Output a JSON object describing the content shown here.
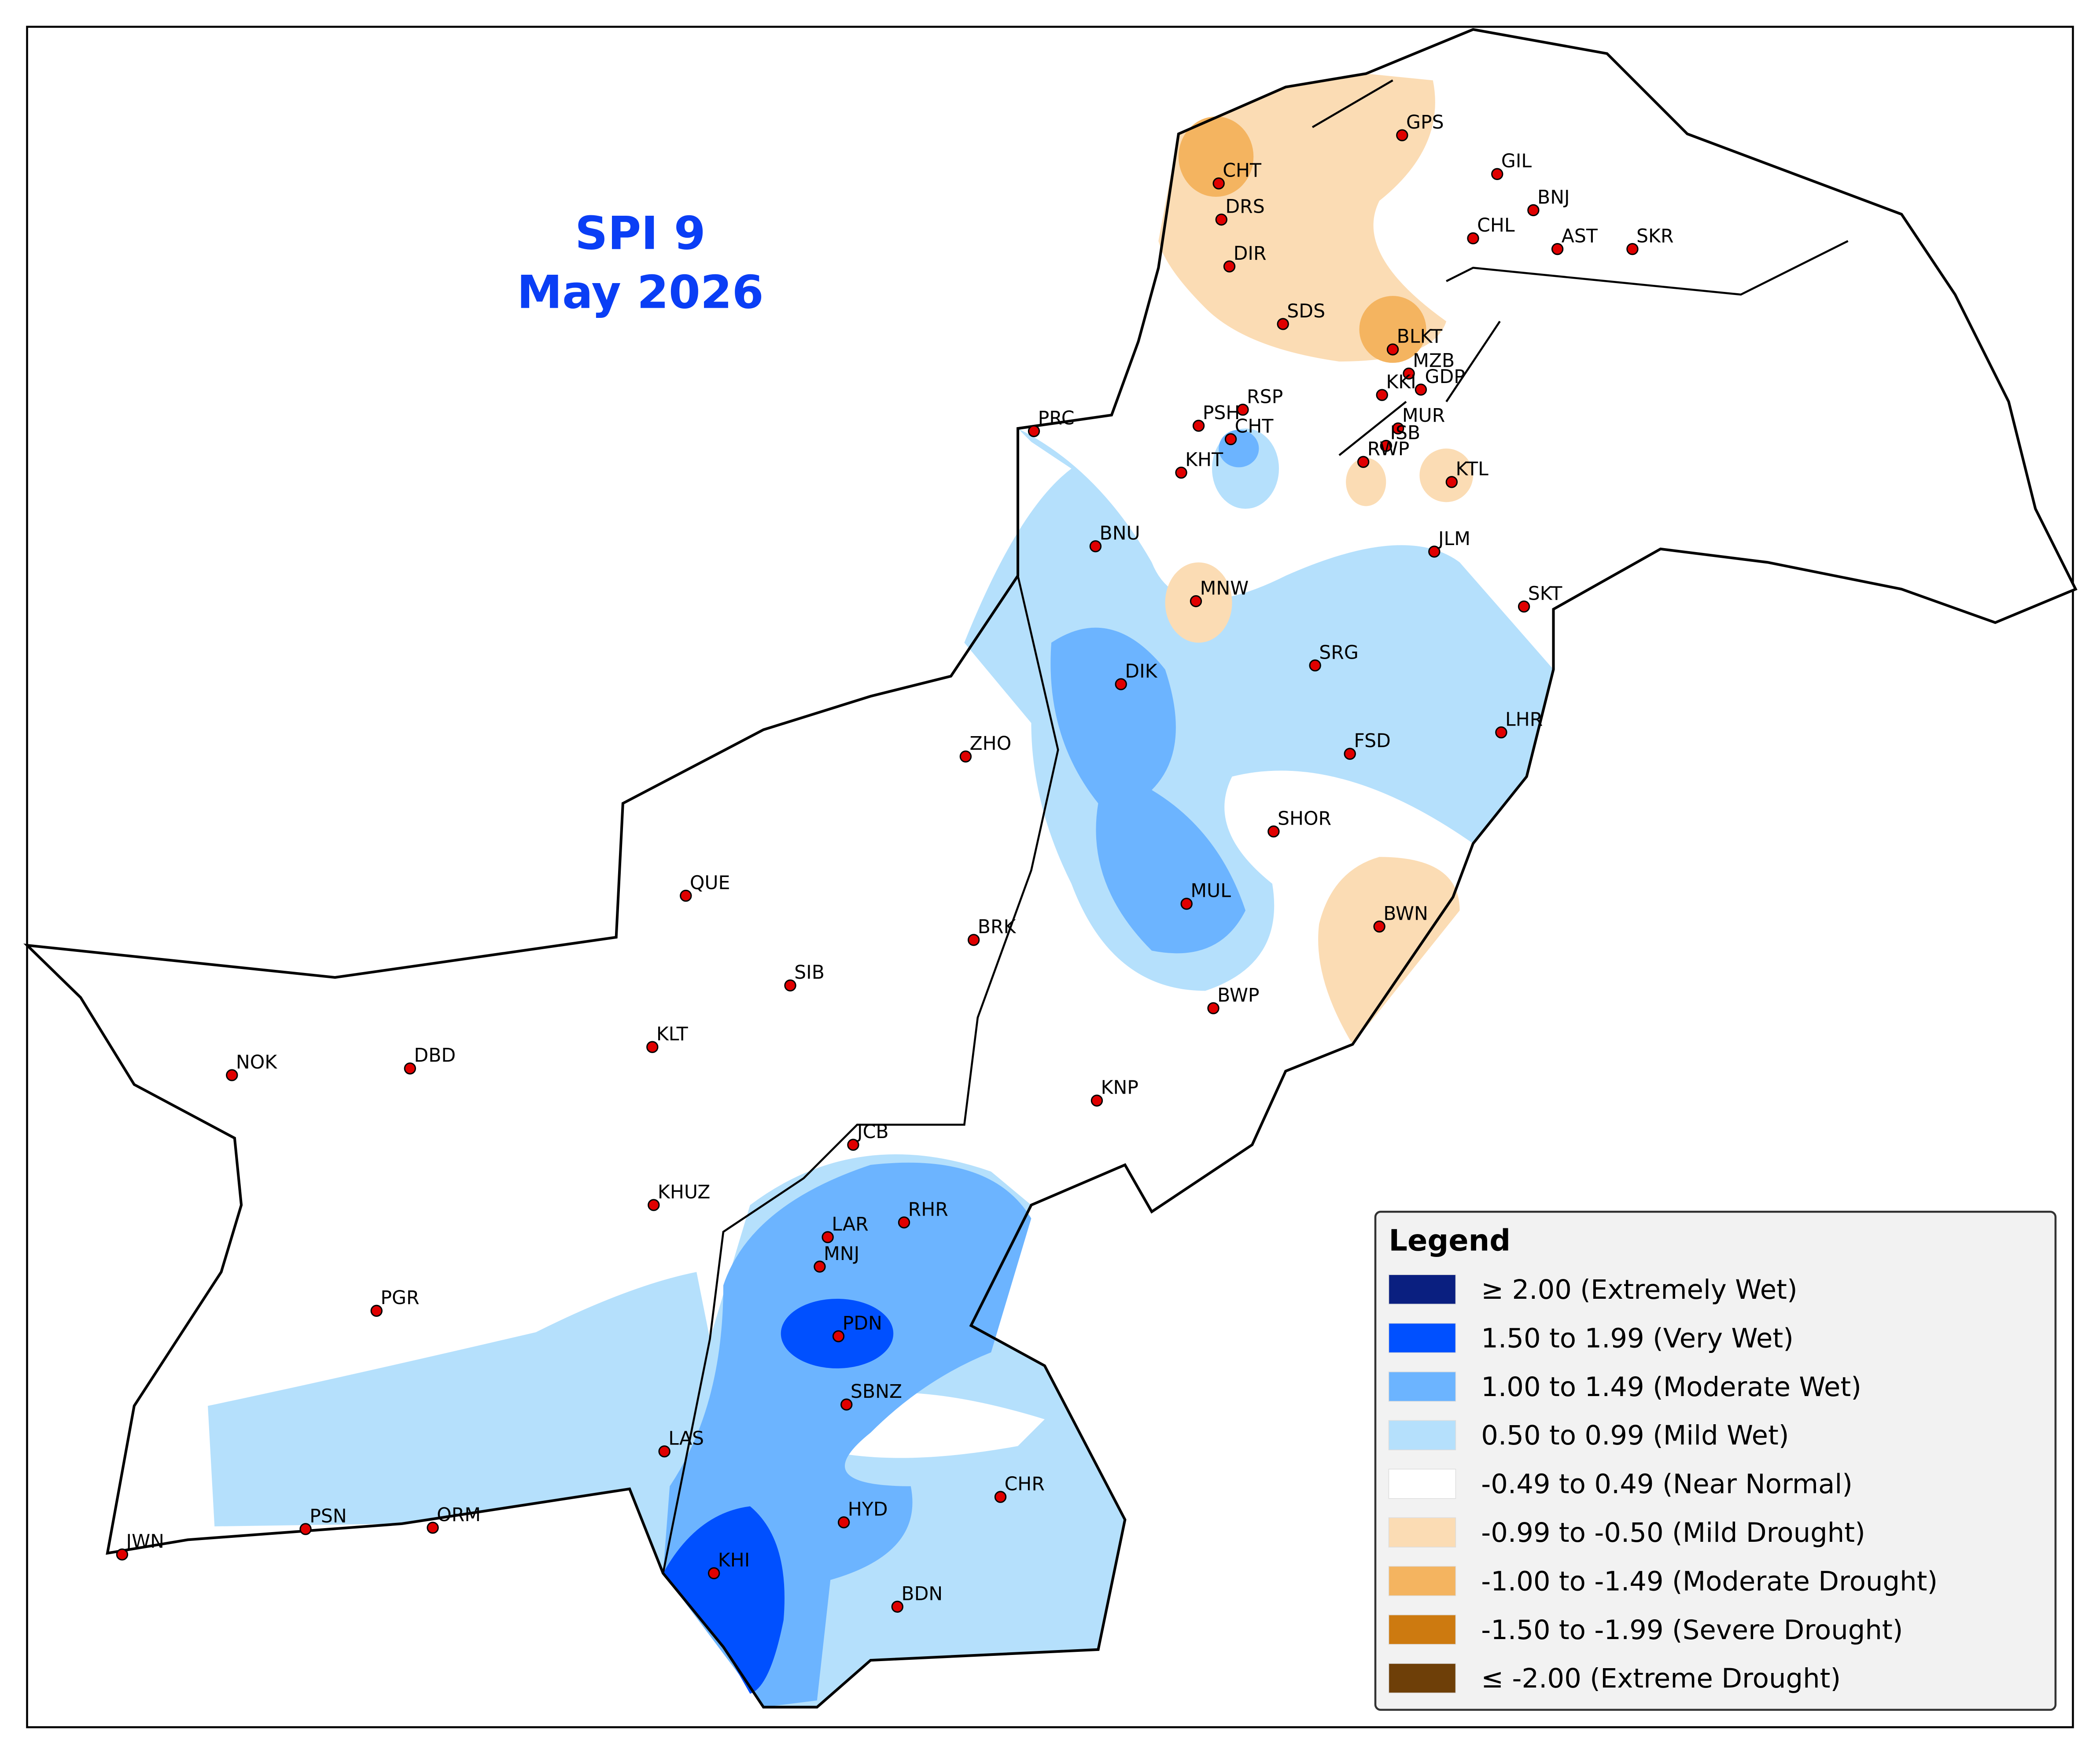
{
  "header": {
    "title": "SPI 9",
    "subtitle": "May 2026"
  },
  "legend": {
    "title": "Legend",
    "items": [
      {
        "label": "≥ 2.00 (Extremely Wet)",
        "color": "#0a1f80"
      },
      {
        "label": "1.50 to 1.99 (Very Wet)",
        "color": "#0050ff"
      },
      {
        "label": "1.00 to 1.49 (Moderate Wet)",
        "color": "#6cb4ff"
      },
      {
        "label": "0.50 to 0.99 (Mild Wet)",
        "color": "#b5e0fc"
      },
      {
        "label": "-0.49 to 0.49 (Near Normal)",
        "color": "#ffffff"
      },
      {
        "label": "-0.99 to -0.50 (Mild Drought)",
        "color": "#fbdcb4"
      },
      {
        "label": "-1.00 to -1.49 (Moderate Drought)",
        "color": "#f4b460"
      },
      {
        "label": "-1.50 to -1.99 (Severe Drought)",
        "color": "#cd7a10"
      },
      {
        "label": "≤ -2.00 (Extreme Drought)",
        "color": "#6e3f08"
      }
    ]
  },
  "stations": [
    "GPS",
    "CHT",
    "GIL",
    "BNJ",
    "DRS",
    "CHL",
    "AST",
    "SKR",
    "DIR",
    "SDS",
    "BLKT",
    "MZB",
    "KKI",
    "GDP",
    "RSP",
    "PSH",
    "PRC",
    "MUR",
    "CHT",
    "ISB",
    "RWP",
    "KTL",
    "KHT",
    "BNU",
    "JLM",
    "MNW",
    "SKT",
    "SRG",
    "DIK",
    "LHR",
    "FSD",
    "ZHO",
    "SHOR",
    "QUE",
    "MUL",
    "BWN",
    "BRK",
    "SIB",
    "BWP",
    "KLT",
    "NOK",
    "DBD",
    "KNP",
    "JCB",
    "KHUZ",
    "RHR",
    "LAR",
    "MNJ",
    "PGR",
    "PDN",
    "SBNZ",
    "LAS",
    "CHR",
    "HYD",
    "PSN",
    "ORM",
    "JWN",
    "KHI",
    "BDN"
  ]
}
